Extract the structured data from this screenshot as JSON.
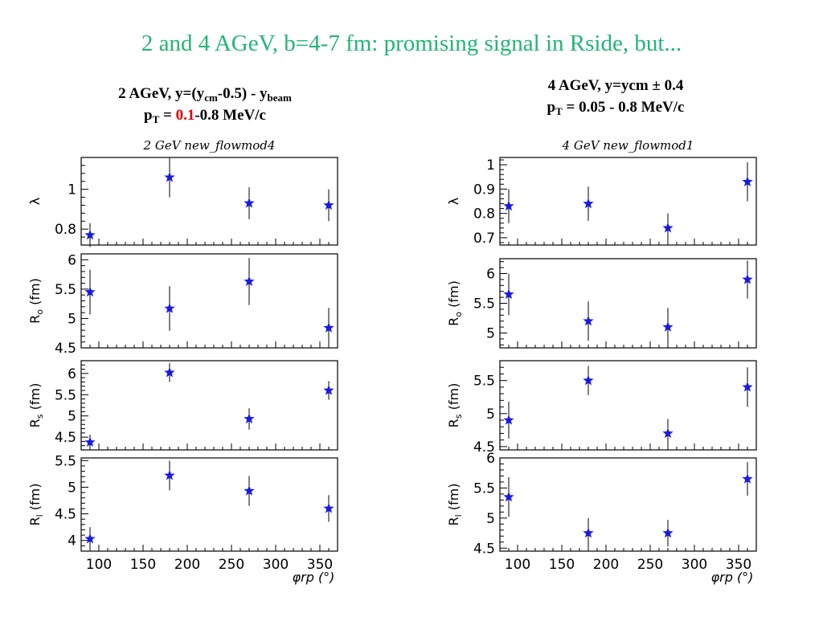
{
  "slide": {
    "title": "2 and 4 AGeV, b=4-7 fm: promising signal in Rside, but..."
  },
  "left_heading": {
    "l1_a": "2 AGeV, y=(y",
    "l1_sub1": "cm",
    "l1_b": "-0.5) - y",
    "l1_sub2": "beam",
    "l2_a": "p",
    "l2_sub": "T",
    "l2_b": " = ",
    "l2_hl": "0.1",
    "l2_c": "-0.8 MeV/c"
  },
  "right_heading": {
    "l1": "4 AGeV, y=ycm ± 0.4",
    "l2_a": "p",
    "l2_sub": "T",
    "l2_b": " = 0.05 - 0.8 MeV/c"
  },
  "colors": {
    "title": "#22b573",
    "highlight": "#e00000",
    "marker": "#1a1ae6"
  },
  "chart_data": [
    {
      "type": "scatter",
      "title": "2 GeV new_flowmod4",
      "xlabel": "φrp (°)",
      "xlim": [
        80,
        370
      ],
      "xticks": [
        100,
        150,
        200,
        250,
        300,
        350
      ],
      "marker": "star",
      "panels": [
        {
          "ylabel": "λ",
          "ylim": [
            0.72,
            1.16
          ],
          "yticks": [
            0.8,
            1
          ],
          "x": [
            90,
            180,
            270,
            360
          ],
          "y": [
            0.77,
            1.06,
            0.93,
            0.92
          ],
          "err": [
            0.06,
            0.1,
            0.08,
            0.08
          ]
        },
        {
          "ylabel": "Ro (fm)",
          "ylim": [
            4.5,
            6.1
          ],
          "yticks": [
            4.5,
            5,
            5.5,
            6
          ],
          "x": [
            90,
            180,
            270,
            360
          ],
          "y": [
            5.45,
            5.17,
            5.63,
            4.84
          ],
          "err": [
            0.38,
            0.38,
            0.4,
            0.34
          ]
        },
        {
          "ylabel": "Rs (fm)",
          "ylim": [
            4.2,
            6.3
          ],
          "yticks": [
            4.5,
            5,
            5.5,
            6
          ],
          "x": [
            90,
            180,
            270,
            360
          ],
          "y": [
            4.38,
            6.02,
            4.93,
            5.6
          ],
          "err": [
            0.18,
            0.22,
            0.25,
            0.22
          ]
        },
        {
          "ylabel": "Rl (fm)",
          "ylim": [
            3.8,
            5.55
          ],
          "yticks": [
            4,
            4.5,
            5,
            5.5
          ],
          "x": [
            90,
            180,
            270,
            360
          ],
          "y": [
            4.03,
            5.22,
            4.93,
            4.6
          ],
          "err": [
            0.22,
            0.28,
            0.28,
            0.25
          ]
        }
      ]
    },
    {
      "type": "scatter",
      "title": "4 GeV new_flowmod1",
      "xlabel": "φrp (°)",
      "xlim": [
        80,
        370
      ],
      "xticks": [
        100,
        150,
        200,
        250,
        300,
        350
      ],
      "marker": "star",
      "panels": [
        {
          "ylabel": "λ",
          "ylim": [
            0.67,
            1.03
          ],
          "yticks": [
            0.7,
            0.8,
            0.9,
            1
          ],
          "x": [
            90,
            180,
            270,
            360
          ],
          "y": [
            0.83,
            0.84,
            0.74,
            0.93
          ],
          "err": [
            0.07,
            0.07,
            0.06,
            0.08
          ]
        },
        {
          "ylabel": "Ro (fm)",
          "ylim": [
            4.75,
            6.25
          ],
          "yticks": [
            5,
            5.5,
            6
          ],
          "x": [
            90,
            180,
            270,
            360
          ],
          "y": [
            5.65,
            5.2,
            5.1,
            5.9
          ],
          "err": [
            0.35,
            0.33,
            0.32,
            0.32
          ]
        },
        {
          "ylabel": "Rs (fm)",
          "ylim": [
            4.45,
            5.8
          ],
          "yticks": [
            4.5,
            5,
            5.5
          ],
          "x": [
            90,
            180,
            270,
            360
          ],
          "y": [
            4.9,
            5.5,
            4.7,
            5.4
          ],
          "err": [
            0.28,
            0.22,
            0.22,
            0.3
          ]
        },
        {
          "ylabel": "Rl (fm)",
          "ylim": [
            4.45,
            6.0
          ],
          "yticks": [
            4.5,
            5,
            5.5,
            6
          ],
          "x": [
            90,
            180,
            270,
            360
          ],
          "y": [
            5.35,
            4.75,
            4.75,
            5.65
          ],
          "err": [
            0.33,
            0.25,
            0.22,
            0.28
          ]
        }
      ]
    }
  ]
}
